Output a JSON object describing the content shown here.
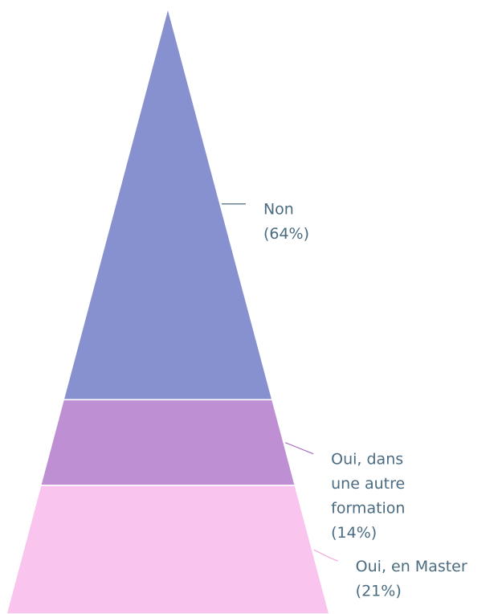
{
  "chart_data": {
    "type": "pyramid",
    "categories": [
      "Non",
      "Oui, dans une autre formation",
      "Oui, en Master"
    ],
    "values": [
      64,
      14,
      21
    ],
    "value_labels": [
      "(64%)",
      "(14%)",
      "(21%)"
    ],
    "colors": [
      "#8891cf",
      "#bf8fd3",
      "#f9c5ee"
    ]
  }
}
